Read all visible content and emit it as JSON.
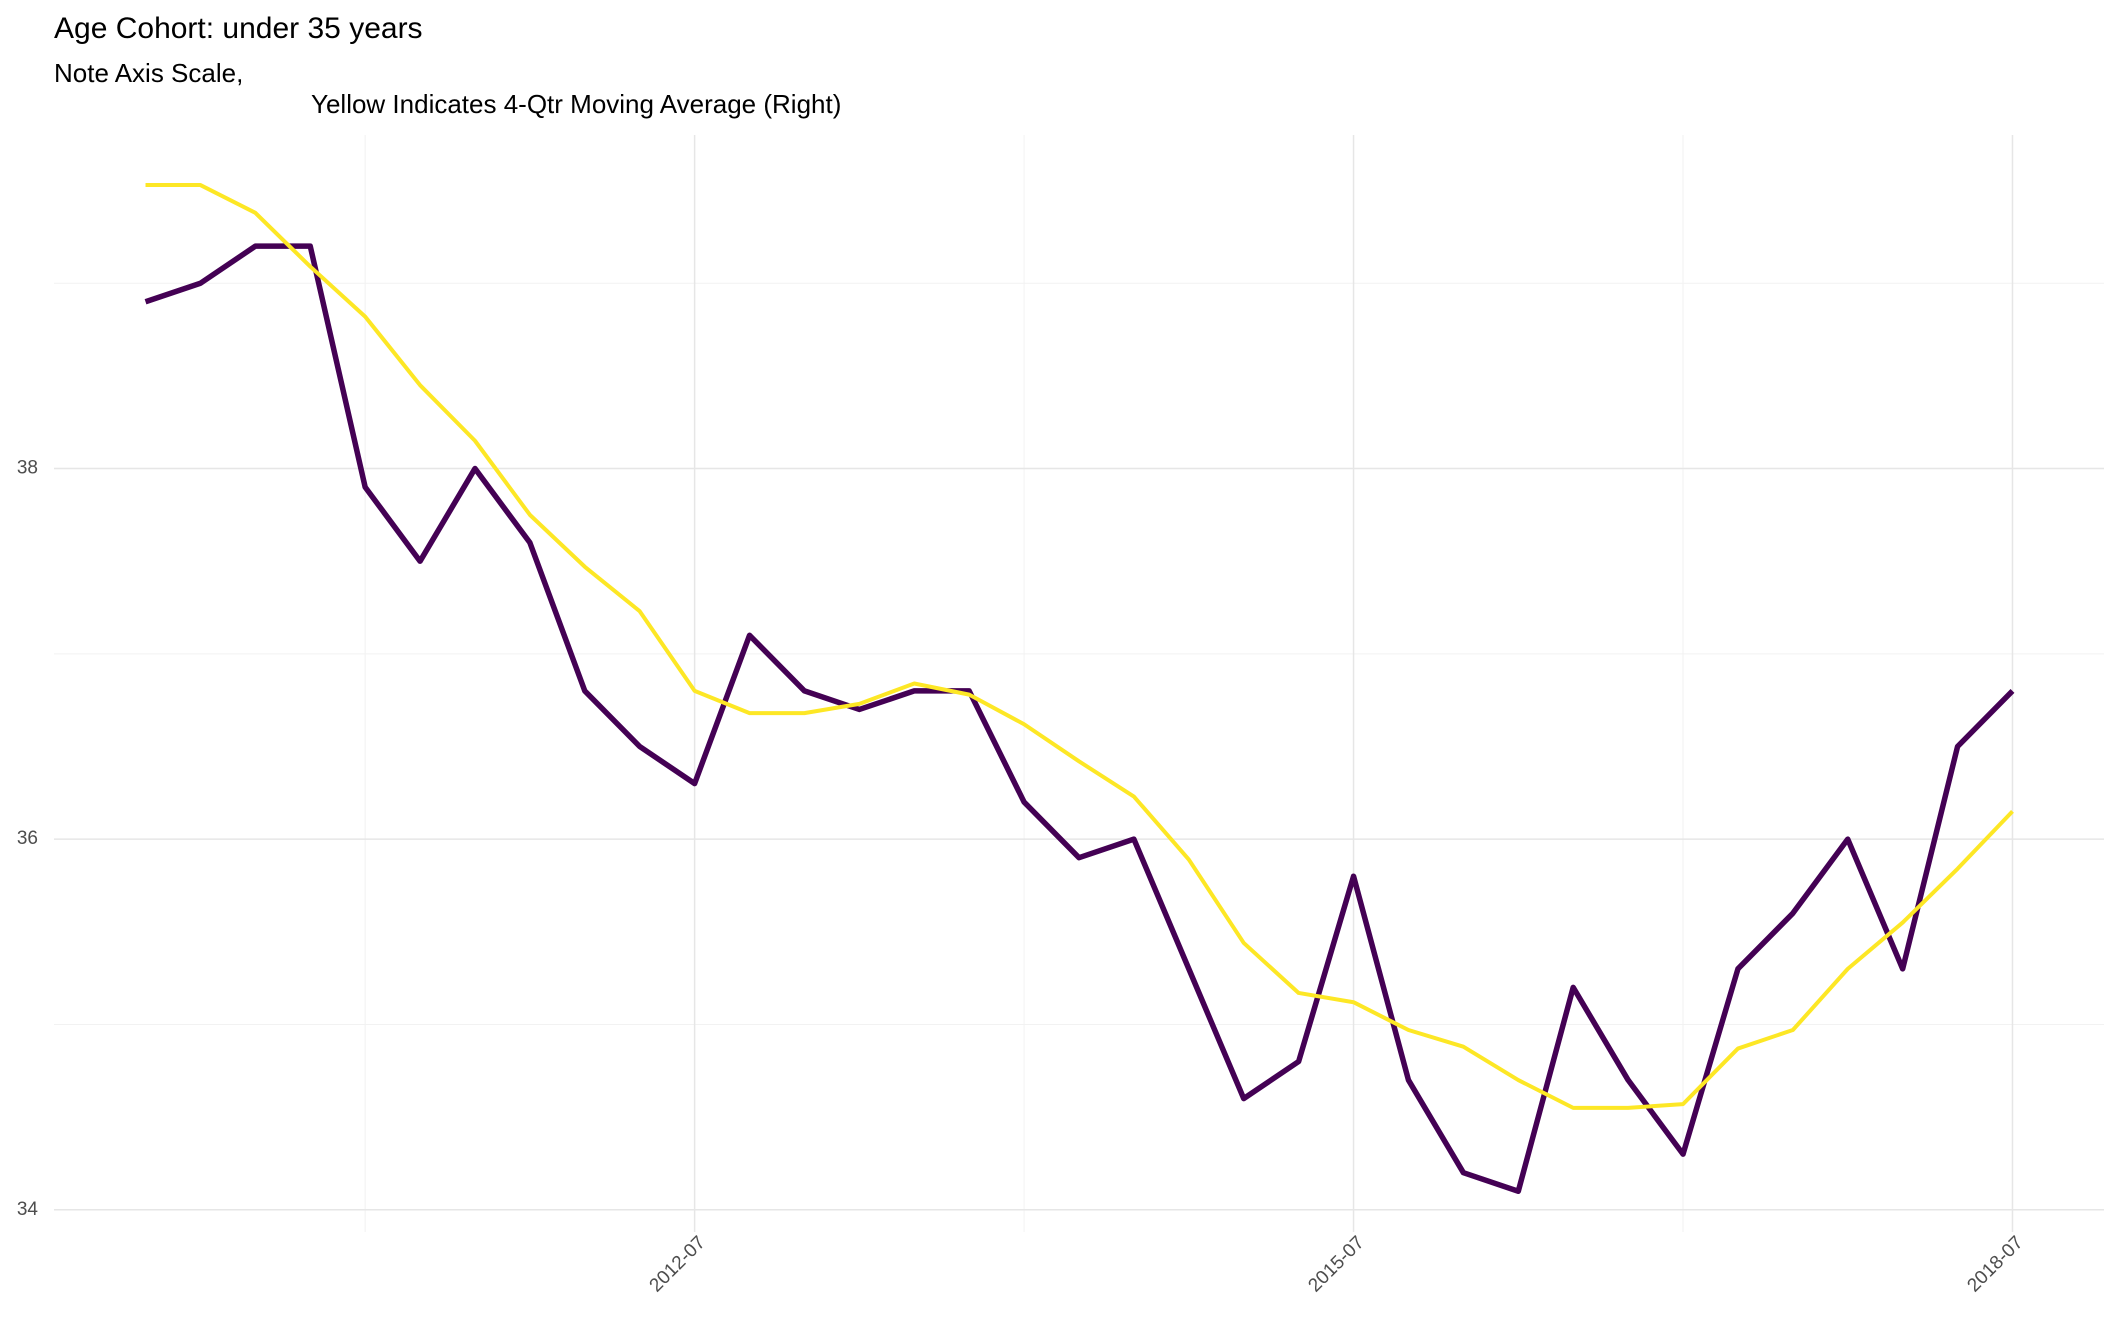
{
  "chart_data": {
    "type": "line",
    "title": "Age Cohort: under 35 years",
    "subtitle": [
      "Note Axis Scale,",
      "Yellow Indicates 4-Qtr Moving Average (Right)"
    ],
    "x": [
      "2010-01",
      "2010-04",
      "2010-07",
      "2010-10",
      "2011-01",
      "2011-04",
      "2011-07",
      "2011-10",
      "2012-01",
      "2012-04",
      "2012-07",
      "2012-10",
      "2013-01",
      "2013-04",
      "2013-07",
      "2013-10",
      "2014-01",
      "2014-04",
      "2014-07",
      "2014-10",
      "2015-01",
      "2015-04",
      "2015-07",
      "2015-10",
      "2016-01",
      "2016-04",
      "2016-07",
      "2016-10",
      "2017-01",
      "2017-04",
      "2017-07",
      "2017-10",
      "2018-01",
      "2018-04",
      "2018-07"
    ],
    "series": [
      {
        "name": "Quarterly",
        "color": "#440154",
        "values": [
          38.9,
          39.0,
          39.2,
          39.2,
          37.9,
          37.5,
          38.0,
          37.6,
          36.8,
          36.5,
          36.3,
          37.1,
          36.8,
          36.7,
          36.8,
          36.8,
          36.2,
          35.9,
          36.0,
          35.3,
          34.6,
          34.8,
          35.8,
          34.7,
          34.2,
          34.1,
          35.2,
          34.7,
          34.3,
          35.3,
          35.6,
          36.0,
          35.3,
          36.5,
          36.8
        ]
      },
      {
        "name": "4-Qtr Moving Average",
        "color": "#FDE725",
        "values": [
          39.53,
          39.53,
          39.38,
          39.09,
          38.82,
          38.45,
          38.15,
          37.75,
          37.47,
          37.23,
          36.8,
          36.68,
          36.68,
          36.73,
          36.84,
          36.78,
          36.62,
          36.42,
          36.23,
          35.89,
          35.44,
          35.17,
          35.12,
          34.97,
          34.88,
          34.7,
          34.55,
          34.55,
          34.57,
          34.87,
          34.97,
          35.3,
          35.55,
          35.84,
          36.15
        ]
      }
    ],
    "xlim": [
      "2009-08",
      "2018-12"
    ],
    "xticks": [
      "2012-07",
      "2015-07",
      "2018-07"
    ],
    "xminor_ticks": [
      "2011-01",
      "2014-01",
      "2017-01"
    ],
    "ylim": [
      33.88,
      39.8
    ],
    "yticks": [
      34,
      36,
      38
    ],
    "yminor_ticks": [
      35,
      37,
      39
    ],
    "grid": true
  }
}
